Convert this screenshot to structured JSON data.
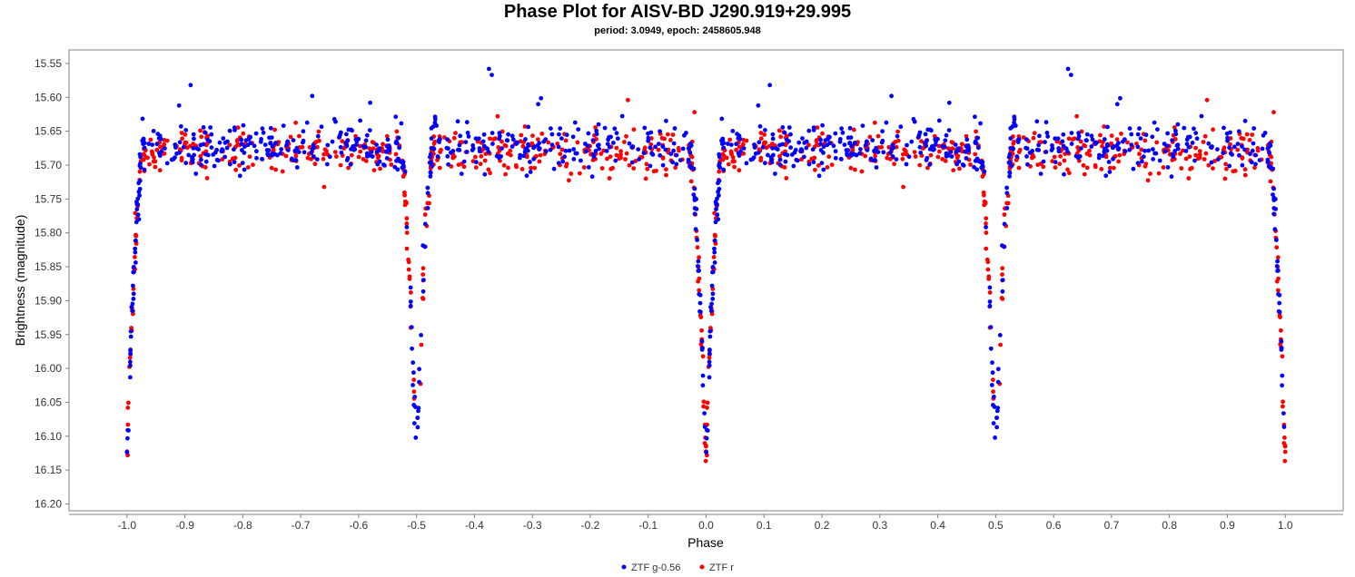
{
  "chart_data": {
    "type": "scatter",
    "title": "Phase Plot for AISV-BD J290.919+29.995",
    "subtitle": "period: 3.0949, epoch: 2458605.948",
    "xlabel": "Phase",
    "ylabel": "Brightness (magnitude)",
    "xlim": [
      -1.1,
      1.1
    ],
    "ylim": [
      16.21,
      15.53
    ],
    "y_inverted": true,
    "xticks": [
      "-1.0",
      "-0.9",
      "-0.8",
      "-0.7",
      "-0.6",
      "-0.5",
      "-0.4",
      "-0.3",
      "-0.2",
      "-0.1",
      "0.0",
      "0.1",
      "0.2",
      "0.3",
      "0.4",
      "0.5",
      "0.6",
      "0.7",
      "0.8",
      "0.9",
      "1.0"
    ],
    "yticks": [
      "15.55",
      "15.60",
      "15.65",
      "15.70",
      "15.75",
      "15.80",
      "15.85",
      "15.90",
      "15.95",
      "16.00",
      "16.05",
      "16.10",
      "16.15",
      "16.20"
    ],
    "grid": false,
    "legend_position": "bottom",
    "series": [
      {
        "name": "ZTF g-0.56",
        "color": "#0000ff",
        "model": {
          "baseline": 15.674,
          "scatter": 0.018,
          "primary_depth": 0.47,
          "secondary_depth": 0.46,
          "eclipse_halfwidth": 0.028,
          "count": 520,
          "phase_range": [
            0,
            1
          ],
          "duplicate_phase_offset": -1
        },
        "outliers": [
          [
            0.625,
            15.558
          ],
          [
            0.63,
            15.567
          ],
          [
            0.11,
            15.582
          ],
          [
            0.32,
            15.598
          ],
          [
            0.71,
            15.61
          ],
          [
            0.42,
            15.608
          ],
          [
            0.09,
            15.612
          ]
        ]
      },
      {
        "name": "ZTF r",
        "color": "#ff0000",
        "model": {
          "baseline": 15.68,
          "scatter": 0.017,
          "primary_depth": 0.46,
          "secondary_depth": 0.46,
          "eclipse_halfwidth": 0.028,
          "count": 480,
          "phase_range": [
            0,
            1
          ],
          "duplicate_phase_offset": -1
        },
        "outliers": [
          [
            0.865,
            15.604
          ],
          [
            0.98,
            15.622
          ],
          [
            0.64,
            15.628
          ]
        ]
      }
    ]
  }
}
